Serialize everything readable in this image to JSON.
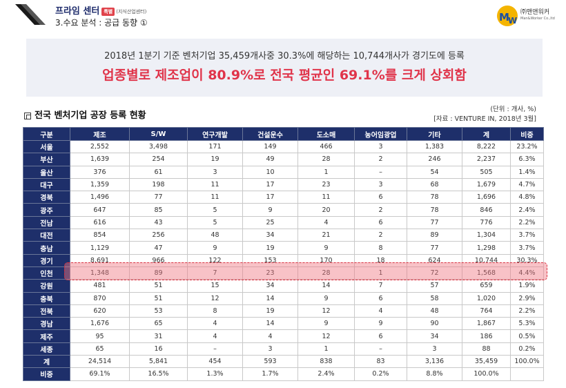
{
  "header": {
    "brand": "프라임 센터",
    "brand_tag": "특별",
    "brand_sub": "(지식산업센터)",
    "subtitle": "3.수요 분석 : 공급 동향 ①",
    "corp_name": "㈜맨앤워커",
    "corp_en": "Man&Worker Co.,ltd"
  },
  "banner": {
    "line1": "2018년 1분기 기준 벤처기업 35,459개사중 30.3%에 해당하는 10,744개사가 경기도에 등록",
    "line2": "업종별로 제조업이 80.9%로 전국 평균인 69.1%를 크게 상회함"
  },
  "table_title": "전국 벤처기업 공장 등록 현황",
  "unit": "(단위 : 개사, %)",
  "source": "[자료 : VENTURE IN, 2018년 3월]",
  "table": {
    "headers": [
      "구분",
      "제조",
      "S/W",
      "연구개발",
      "건설운수",
      "도소매",
      "농어임광업",
      "기타",
      "계",
      "비중"
    ],
    "rows": [
      [
        "서울",
        "2,552",
        "3,498",
        "171",
        "149",
        "466",
        "3",
        "1,383",
        "8,222",
        "23.2%"
      ],
      [
        "부산",
        "1,639",
        "254",
        "19",
        "49",
        "28",
        "2",
        "246",
        "2,237",
        "6.3%"
      ],
      [
        "울산",
        "376",
        "61",
        "3",
        "10",
        "1",
        "–",
        "54",
        "505",
        "1.4%"
      ],
      [
        "대구",
        "1,359",
        "198",
        "11",
        "17",
        "23",
        "3",
        "68",
        "1,679",
        "4.7%"
      ],
      [
        "경북",
        "1,496",
        "77",
        "11",
        "17",
        "11",
        "6",
        "78",
        "1,696",
        "4.8%"
      ],
      [
        "광주",
        "647",
        "85",
        "5",
        "9",
        "20",
        "2",
        "78",
        "846",
        "2.4%"
      ],
      [
        "전남",
        "616",
        "43",
        "5",
        "25",
        "4",
        "6",
        "77",
        "776",
        "2.2%"
      ],
      [
        "대전",
        "854",
        "256",
        "48",
        "34",
        "21",
        "2",
        "89",
        "1,304",
        "3.7%"
      ],
      [
        "충남",
        "1,129",
        "47",
        "9",
        "19",
        "9",
        "8",
        "77",
        "1,298",
        "3.7%"
      ],
      [
        "경기",
        "8,691",
        "966",
        "122",
        "153",
        "170",
        "18",
        "624",
        "10,744",
        "30.3%"
      ],
      [
        "인천",
        "1,348",
        "89",
        "7",
        "23",
        "28",
        "1",
        "72",
        "1,568",
        "4.4%"
      ],
      [
        "강원",
        "481",
        "51",
        "15",
        "34",
        "14",
        "7",
        "57",
        "659",
        "1.9%"
      ],
      [
        "충북",
        "870",
        "51",
        "12",
        "14",
        "9",
        "6",
        "58",
        "1,020",
        "2.9%"
      ],
      [
        "전북",
        "620",
        "53",
        "8",
        "19",
        "12",
        "4",
        "48",
        "764",
        "2.2%"
      ],
      [
        "경남",
        "1,676",
        "65",
        "4",
        "14",
        "9",
        "9",
        "90",
        "1,867",
        "5.3%"
      ],
      [
        "제주",
        "95",
        "31",
        "4",
        "4",
        "12",
        "6",
        "34",
        "186",
        "0.5%"
      ],
      [
        "세종",
        "65",
        "16",
        "–",
        "3",
        "1",
        "–",
        "3",
        "88",
        "0.2%"
      ],
      [
        "계",
        "24,514",
        "5,841",
        "454",
        "593",
        "838",
        "83",
        "3,136",
        "35,459",
        "100.0%"
      ],
      [
        "비중",
        "69.1%",
        "16.5%",
        "1.3%",
        "1.7%",
        "2.4%",
        "0.2%",
        "8.8%",
        "100.0%",
        ""
      ]
    ]
  },
  "highlight_row": "인천",
  "colors": {
    "header_navy": "#1e2f6a",
    "accent_red": "#e0344a",
    "banner_bg": "#eef0f6"
  }
}
